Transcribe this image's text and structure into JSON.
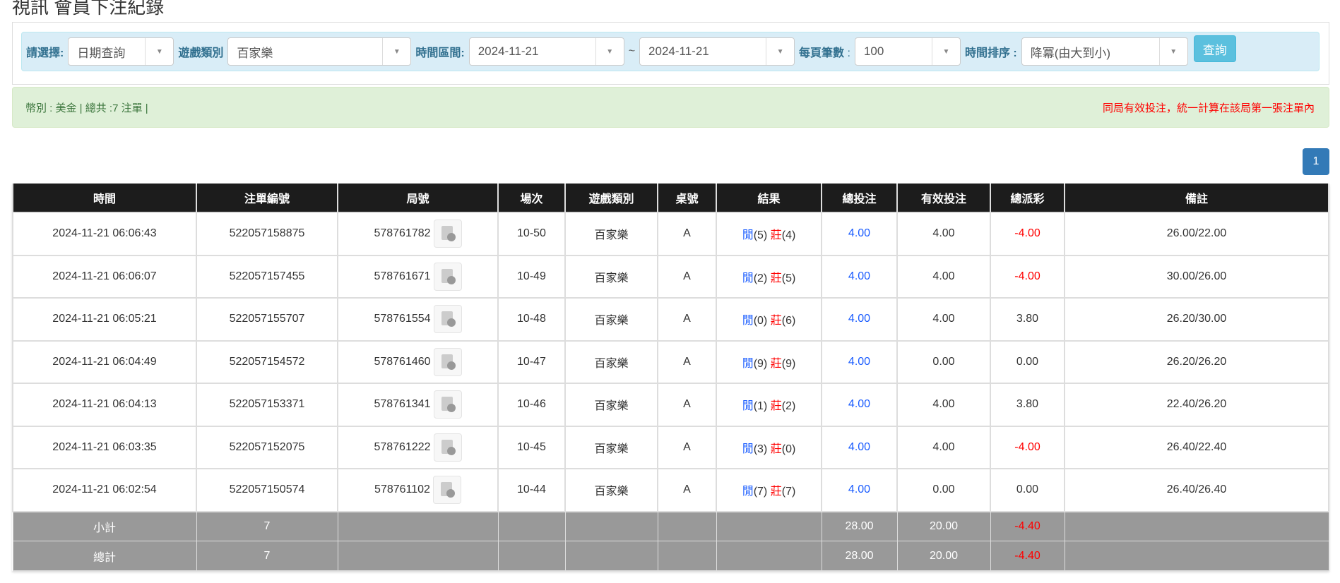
{
  "title": "視訊 會員下注紀錄",
  "filters": {
    "select_label": "請選擇:",
    "select_value": "日期查詢",
    "game_label": "遊戲類別",
    "game_value": "百家樂",
    "range_label": "時間區間:",
    "date_from": "2024-11-21",
    "tilde": "~",
    "date_to": "2024-11-21",
    "per_page_label": "每頁筆數",
    "per_page_colon": ":",
    "per_page_value": "100",
    "sort_label": "時間排序 :",
    "sort_value": "降冪(由大到小)",
    "query_button": "查詢"
  },
  "alert": {
    "left": "幣別 : 美金 | 總共 :7 注單 |",
    "right": "同局有效投注，統一計算在該局第一張注單內"
  },
  "pagination": {
    "current": "1"
  },
  "colors": {
    "header_bg": "#1c1c1c",
    "player": "#1a5cff",
    "banker": "#ff0000",
    "summary_bg": "#999999"
  },
  "table": {
    "headers": [
      "時間",
      "注單編號",
      "局號",
      "場次",
      "遊戲類別",
      "桌號",
      "結果",
      "總投注",
      "有效投注",
      "總派彩",
      "備註"
    ],
    "rows": [
      {
        "time": "2024-11-21 06:06:43",
        "bet_id": "522057158875",
        "round": "578761782",
        "session": "10-50",
        "game": "百家樂",
        "table": "A",
        "p": "閒",
        "pv": "(5)",
        "b": "莊",
        "bv": "(4)",
        "total": "4.00",
        "valid": "4.00",
        "payout": "-4.00",
        "neg": true,
        "note": "26.00/22.00"
      },
      {
        "time": "2024-11-21 06:06:07",
        "bet_id": "522057157455",
        "round": "578761671",
        "session": "10-49",
        "game": "百家樂",
        "table": "A",
        "p": "閒",
        "pv": "(2)",
        "b": "莊",
        "bv": "(5)",
        "total": "4.00",
        "valid": "4.00",
        "payout": "-4.00",
        "neg": true,
        "note": "30.00/26.00"
      },
      {
        "time": "2024-11-21 06:05:21",
        "bet_id": "522057155707",
        "round": "578761554",
        "session": "10-48",
        "game": "百家樂",
        "table": "A",
        "p": "閒",
        "pv": "(0)",
        "b": "莊",
        "bv": "(6)",
        "total": "4.00",
        "valid": "4.00",
        "payout": "3.80",
        "neg": false,
        "note": "26.20/30.00"
      },
      {
        "time": "2024-11-21 06:04:49",
        "bet_id": "522057154572",
        "round": "578761460",
        "session": "10-47",
        "game": "百家樂",
        "table": "A",
        "p": "閒",
        "pv": "(9)",
        "b": "莊",
        "bv": "(9)",
        "total": "4.00",
        "valid": "0.00",
        "payout": "0.00",
        "neg": false,
        "note": "26.20/26.20"
      },
      {
        "time": "2024-11-21 06:04:13",
        "bet_id": "522057153371",
        "round": "578761341",
        "session": "10-46",
        "game": "百家樂",
        "table": "A",
        "p": "閒",
        "pv": "(1)",
        "b": "莊",
        "bv": "(2)",
        "total": "4.00",
        "valid": "4.00",
        "payout": "3.80",
        "neg": false,
        "note": "22.40/26.20"
      },
      {
        "time": "2024-11-21 06:03:35",
        "bet_id": "522057152075",
        "round": "578761222",
        "session": "10-45",
        "game": "百家樂",
        "table": "A",
        "p": "閒",
        "pv": "(3)",
        "b": "莊",
        "bv": "(0)",
        "total": "4.00",
        "valid": "4.00",
        "payout": "-4.00",
        "neg": true,
        "note": "26.40/22.40"
      },
      {
        "time": "2024-11-21 06:02:54",
        "bet_id": "522057150574",
        "round": "578761102",
        "session": "10-44",
        "game": "百家樂",
        "table": "A",
        "p": "閒",
        "pv": "(7)",
        "b": "莊",
        "bv": "(7)",
        "total": "4.00",
        "valid": "0.00",
        "payout": "0.00",
        "neg": false,
        "note": "26.40/26.40"
      }
    ],
    "summary": [
      {
        "label": "小計",
        "count": "7",
        "total": "28.00",
        "valid": "20.00",
        "payout": "-4.40"
      },
      {
        "label": "總計",
        "count": "7",
        "total": "28.00",
        "valid": "20.00",
        "payout": "-4.40"
      }
    ]
  }
}
